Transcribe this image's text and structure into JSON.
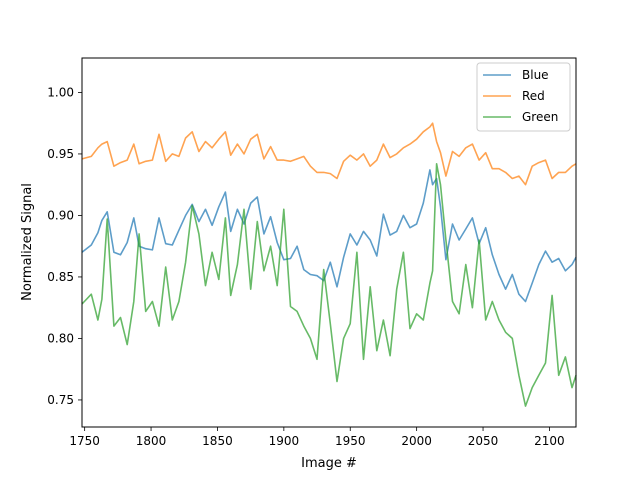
{
  "chart_data": {
    "type": "line",
    "xlabel": "Image #",
    "ylabel": "Normalized Signal",
    "xlim": [
      1748,
      2120
    ],
    "ylim": [
      0.728,
      1.028
    ],
    "xticks": [
      1750,
      1800,
      1850,
      1900,
      1950,
      2000,
      2050,
      2100
    ],
    "yticks": [
      0.75,
      0.8,
      0.85,
      0.9,
      0.95,
      1.0
    ],
    "ytick_labels": [
      "0.75",
      "0.80",
      "0.85",
      "0.90",
      "0.95",
      "1.00"
    ],
    "grid": false,
    "legend_position": "upper right",
    "x": [
      1748,
      1755,
      1760,
      1763,
      1767,
      1772,
      1777,
      1782,
      1787,
      1791,
      1796,
      1801,
      1806,
      1811,
      1816,
      1821,
      1826,
      1831,
      1836,
      1841,
      1846,
      1851,
      1856,
      1860,
      1865,
      1870,
      1875,
      1880,
      1885,
      1890,
      1895,
      1900,
      1905,
      1910,
      1915,
      1920,
      1925,
      1930,
      1935,
      1940,
      1945,
      1950,
      1955,
      1960,
      1965,
      1970,
      1975,
      1980,
      1985,
      1990,
      1995,
      2000,
      2005,
      2010,
      2012,
      2015,
      2018,
      2022,
      2027,
      2032,
      2037,
      2042,
      2047,
      2052,
      2057,
      2062,
      2067,
      2072,
      2077,
      2082,
      2087,
      2092,
      2097,
      2102,
      2107,
      2112,
      2117,
      2120
    ],
    "series": [
      {
        "name": "Blue",
        "color": "#1f77b4",
        "values": [
          0.87,
          0.876,
          0.886,
          0.896,
          0.903,
          0.87,
          0.868,
          0.878,
          0.898,
          0.875,
          0.873,
          0.872,
          0.898,
          0.877,
          0.876,
          0.888,
          0.9,
          0.909,
          0.895,
          0.905,
          0.892,
          0.907,
          0.919,
          0.887,
          0.905,
          0.893,
          0.91,
          0.915,
          0.885,
          0.899,
          0.878,
          0.864,
          0.865,
          0.875,
          0.856,
          0.852,
          0.851,
          0.847,
          0.862,
          0.842,
          0.866,
          0.885,
          0.876,
          0.887,
          0.88,
          0.867,
          0.901,
          0.884,
          0.887,
          0.9,
          0.89,
          0.893,
          0.91,
          0.937,
          0.925,
          0.93,
          0.907,
          0.864,
          0.893,
          0.88,
          0.889,
          0.898,
          0.877,
          0.89,
          0.868,
          0.852,
          0.84,
          0.852,
          0.836,
          0.83,
          0.845,
          0.86,
          0.871,
          0.862,
          0.865,
          0.855,
          0.86,
          0.866
        ]
      },
      {
        "name": "Red",
        "color": "#ff7f0e",
        "values": [
          0.946,
          0.948,
          0.955,
          0.958,
          0.96,
          0.94,
          0.943,
          0.945,
          0.958,
          0.942,
          0.944,
          0.945,
          0.966,
          0.944,
          0.95,
          0.948,
          0.963,
          0.968,
          0.952,
          0.96,
          0.955,
          0.962,
          0.968,
          0.949,
          0.958,
          0.95,
          0.962,
          0.966,
          0.946,
          0.956,
          0.945,
          0.945,
          0.944,
          0.946,
          0.948,
          0.94,
          0.935,
          0.935,
          0.934,
          0.93,
          0.944,
          0.949,
          0.945,
          0.95,
          0.94,
          0.945,
          0.958,
          0.947,
          0.95,
          0.955,
          0.958,
          0.962,
          0.968,
          0.972,
          0.975,
          0.96,
          0.951,
          0.932,
          0.952,
          0.948,
          0.955,
          0.958,
          0.945,
          0.951,
          0.938,
          0.938,
          0.935,
          0.93,
          0.932,
          0.925,
          0.94,
          0.943,
          0.945,
          0.93,
          0.935,
          0.935,
          0.94,
          0.942
        ]
      },
      {
        "name": "Green",
        "color": "#2ca02c",
        "values": [
          0.828,
          0.836,
          0.815,
          0.832,
          0.897,
          0.81,
          0.817,
          0.795,
          0.83,
          0.885,
          0.822,
          0.83,
          0.81,
          0.858,
          0.815,
          0.83,
          0.862,
          0.908,
          0.885,
          0.843,
          0.87,
          0.848,
          0.898,
          0.835,
          0.86,
          0.905,
          0.84,
          0.895,
          0.855,
          0.875,
          0.843,
          0.905,
          0.826,
          0.822,
          0.81,
          0.8,
          0.783,
          0.856,
          0.812,
          0.765,
          0.8,
          0.812,
          0.87,
          0.783,
          0.842,
          0.79,
          0.815,
          0.786,
          0.84,
          0.87,
          0.808,
          0.82,
          0.815,
          0.845,
          0.855,
          0.942,
          0.925,
          0.88,
          0.83,
          0.82,
          0.86,
          0.825,
          0.88,
          0.815,
          0.83,
          0.815,
          0.805,
          0.8,
          0.77,
          0.745,
          0.76,
          0.77,
          0.78,
          0.835,
          0.77,
          0.785,
          0.76,
          0.77
        ]
      }
    ]
  }
}
